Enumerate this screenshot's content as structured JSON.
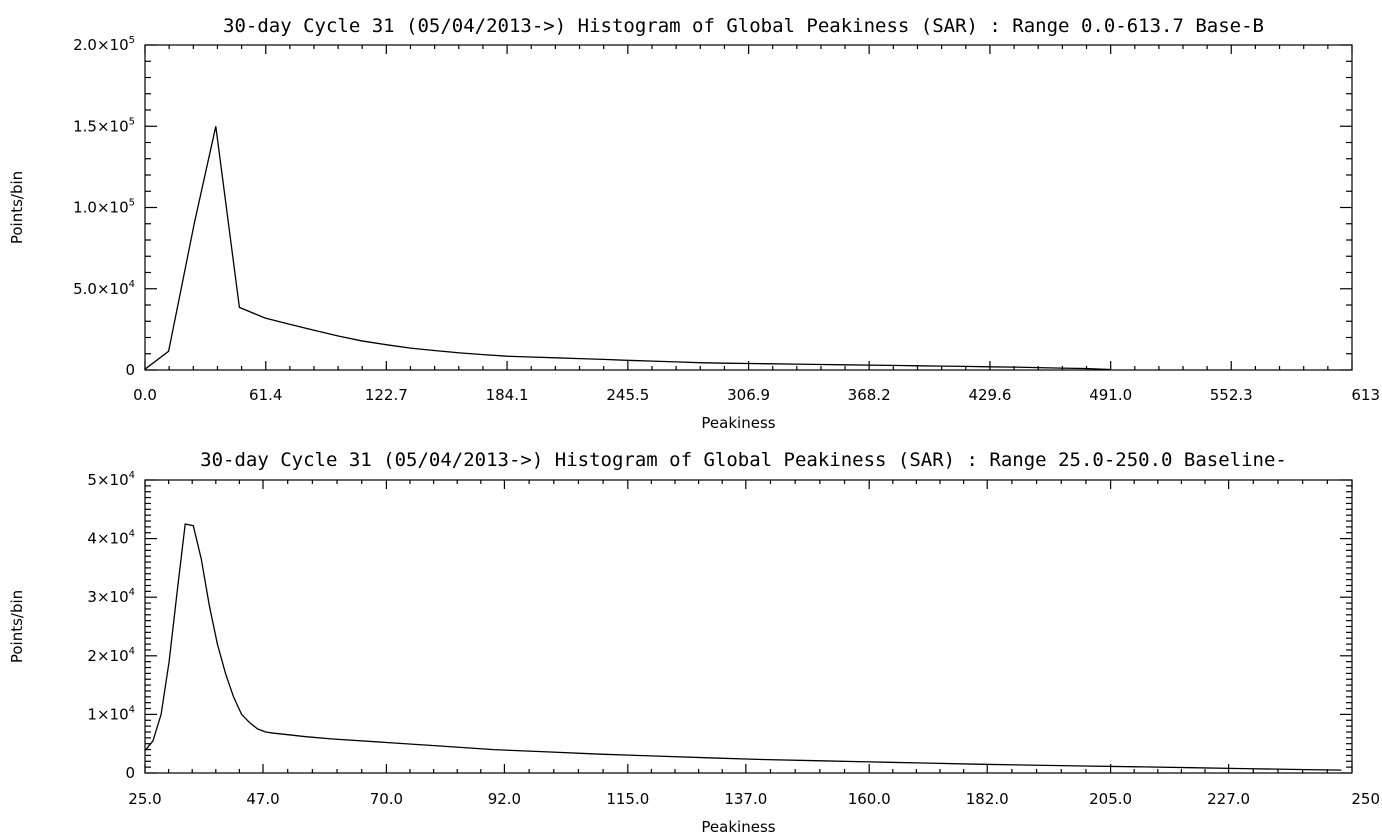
{
  "chart_data": [
    {
      "type": "line",
      "title": "30-day Cycle 31 (05/04/2013->) Histogram of Global Peakiness (SAR) :  Range 0.0-613.7 Base-B",
      "xlabel": "Peakiness",
      "ylabel": "Points/bin",
      "xlim": [
        0.0,
        613.7
      ],
      "ylim": [
        0,
        200000
      ],
      "xticks": [
        0.0,
        61.4,
        122.7,
        184.1,
        245.5,
        306.9,
        368.2,
        429.6,
        491.0,
        552.3,
        613.7
      ],
      "xtick_labels": [
        "0.0",
        "61.4",
        "122.7",
        "184.1",
        "245.5",
        "306.9",
        "368.2",
        "429.6",
        "491.0",
        "552.3",
        "613"
      ],
      "yticks": [
        0,
        50000,
        100000,
        150000,
        200000
      ],
      "ytick_labels": [
        {
          "mantissa": "0",
          "exp": ""
        },
        {
          "mantissa": "5.0×10",
          "exp": "4"
        },
        {
          "mantissa": "1.0×10",
          "exp": "5"
        },
        {
          "mantissa": "1.5×10",
          "exp": "5"
        },
        {
          "mantissa": "2.0×10",
          "exp": "5"
        }
      ],
      "grid": false,
      "series": [
        {
          "x": [
            0,
            12,
            25,
            36,
            48,
            61,
            74,
            86,
            98,
            110,
            123,
            135,
            147,
            160,
            172,
            184,
            196,
            209,
            221,
            233,
            245,
            258,
            270,
            282,
            295,
            307,
            319,
            331,
            344,
            356,
            368,
            380,
            393,
            405,
            417,
            429,
            442,
            454,
            466,
            478,
            491
          ],
          "y": [
            500,
            11500,
            90000,
            150000,
            38500,
            32000,
            28000,
            24500,
            21000,
            18000,
            15500,
            13500,
            12000,
            10500,
            9500,
            8500,
            8000,
            7500,
            7000,
            6500,
            6000,
            5500,
            5000,
            4500,
            4200,
            4000,
            3800,
            3600,
            3400,
            3200,
            3000,
            2800,
            2600,
            2400,
            2200,
            2000,
            1800,
            1500,
            1200,
            900,
            300
          ]
        }
      ]
    },
    {
      "type": "line",
      "title": "30-day Cycle 31 (05/04/2013->) Histogram of Global Peakiness (SAR) :  Range 25.0-250.0 Baseline-",
      "xlabel": "Peakiness",
      "ylabel": "Points/bin",
      "xlim": [
        25.0,
        250.0
      ],
      "ylim": [
        0,
        50000
      ],
      "xticks": [
        25.0,
        47.0,
        70.0,
        92.0,
        115.0,
        137.0,
        160.0,
        182.0,
        205.0,
        227.0,
        250.0
      ],
      "xtick_labels": [
        "25.0",
        "47.0",
        "70.0",
        "92.0",
        "115.0",
        "137.0",
        "160.0",
        "182.0",
        "205.0",
        "227.0",
        "250"
      ],
      "yticks": [
        0,
        10000,
        20000,
        30000,
        40000,
        50000
      ],
      "ytick_labels": [
        {
          "mantissa": "0",
          "exp": ""
        },
        {
          "mantissa": "1×10",
          "exp": "4"
        },
        {
          "mantissa": "2×10",
          "exp": "4"
        },
        {
          "mantissa": "3×10",
          "exp": "4"
        },
        {
          "mantissa": "4×10",
          "exp": "4"
        },
        {
          "mantissa": "5×10",
          "exp": "4"
        }
      ],
      "grid": false,
      "series": [
        {
          "x": [
            25,
            26.5,
            28,
            29.5,
            31,
            32.5,
            34,
            35.5,
            37,
            38.5,
            40,
            41.5,
            43,
            44.5,
            46,
            47.5,
            49,
            51,
            55,
            60,
            70,
            80,
            90,
            100,
            110,
            120,
            130,
            140,
            150,
            160,
            170,
            180,
            190,
            200,
            210,
            220,
            230,
            240,
            248
          ],
          "y": [
            3800,
            5500,
            10000,
            19000,
            31000,
            42500,
            42200,
            36500,
            28500,
            22000,
            17000,
            13000,
            10000,
            8600,
            7500,
            7000,
            6800,
            6600,
            6200,
            5800,
            5200,
            4600,
            4000,
            3600,
            3200,
            2900,
            2600,
            2300,
            2100,
            1900,
            1700,
            1500,
            1350,
            1200,
            1050,
            900,
            750,
            600,
            500
          ]
        }
      ]
    }
  ]
}
